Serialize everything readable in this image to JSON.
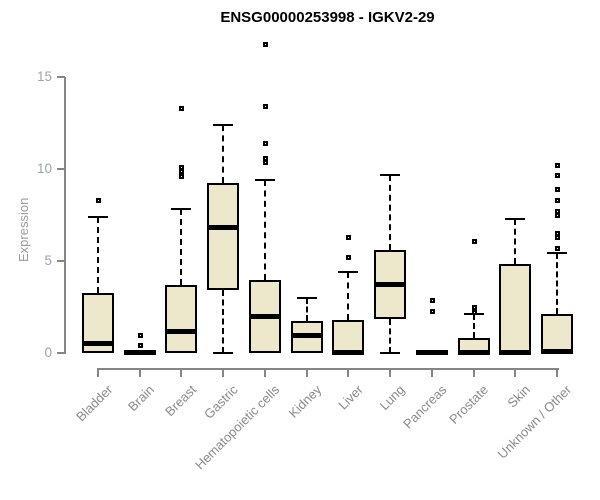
{
  "chart_data": {
    "type": "boxplot",
    "title": "ENSG00000253998 - IGKV2-29",
    "ylabel": "Expression",
    "xlabel": "",
    "ylim": [
      0,
      17
    ],
    "yticks": [
      0,
      5,
      10,
      15
    ],
    "grid": false,
    "legend": "none",
    "colors": {
      "box_fill": "#ede8cc",
      "box_border": "#000000",
      "median": "#000000",
      "axis": "#858585",
      "y_tick_label": "#9aa4ae",
      "x_tick_label": "#8a8a8a",
      "title": "#000000"
    },
    "categories": [
      "Bladder",
      "Brain",
      "Breast",
      "Gastric",
      "Hematopoietic cells",
      "Kidney",
      "Liver",
      "Lung",
      "Pancreas",
      "Prostate",
      "Skin",
      "Unknown / Other"
    ],
    "series": [
      {
        "category": "Bladder",
        "whisker_low": null,
        "q1": 0.0,
        "median": 0.55,
        "q3": 3.25,
        "whisker_high": 7.4,
        "outliers": [
          8.3
        ]
      },
      {
        "category": "Brain",
        "whisker_low": null,
        "q1": 0.0,
        "median": 0.08,
        "q3": 0.18,
        "whisker_high": null,
        "outliers": [
          1.0,
          0.45
        ]
      },
      {
        "category": "Breast",
        "whisker_low": null,
        "q1": 0.02,
        "median": 1.2,
        "q3": 3.7,
        "whisker_high": 7.8,
        "outliers": [
          13.3,
          10.1,
          9.9,
          9.6
        ]
      },
      {
        "category": "Gastric",
        "whisker_low": 0.0,
        "q1": 3.4,
        "median": 6.85,
        "q3": 9.25,
        "whisker_high": 12.4,
        "outliers": []
      },
      {
        "category": "Hematopoietic cells",
        "whisker_low": null,
        "q1": 0.0,
        "median": 2.0,
        "q3": 3.95,
        "whisker_high": 9.4,
        "outliers": [
          16.8,
          13.4,
          11.4,
          10.6,
          10.4
        ]
      },
      {
        "category": "Kidney",
        "whisker_low": null,
        "q1": 0.0,
        "median": 1.0,
        "q3": 1.75,
        "whisker_high": 3.0,
        "outliers": []
      },
      {
        "category": "Liver",
        "whisker_low": null,
        "q1": 0.0,
        "median": 0.08,
        "q3": 1.8,
        "whisker_high": 4.4,
        "outliers": [
          6.3,
          5.2
        ]
      },
      {
        "category": "Lung",
        "whisker_low": 0.0,
        "q1": 1.85,
        "median": 3.75,
        "q3": 5.6,
        "whisker_high": 9.65,
        "outliers": []
      },
      {
        "category": "Pancreas",
        "whisker_low": null,
        "q1": 0.0,
        "median": 0.05,
        "q3": 0.12,
        "whisker_high": null,
        "outliers": [
          2.9,
          2.3
        ]
      },
      {
        "category": "Prostate",
        "whisker_low": null,
        "q1": 0.0,
        "median": 0.05,
        "q3": 0.8,
        "whisker_high": 2.1,
        "outliers": [
          6.1,
          2.5,
          2.25
        ]
      },
      {
        "category": "Skin",
        "whisker_low": null,
        "q1": 0.0,
        "median": 0.07,
        "q3": 4.85,
        "whisker_high": 7.3,
        "outliers": []
      },
      {
        "category": "Unknown / Other",
        "whisker_low": null,
        "q1": 0.0,
        "median": 0.1,
        "q3": 2.1,
        "whisker_high": 5.45,
        "outliers": [
          10.2,
          9.7,
          8.9,
          8.3,
          7.7,
          7.5,
          6.5,
          6.3,
          5.7
        ]
      }
    ]
  }
}
